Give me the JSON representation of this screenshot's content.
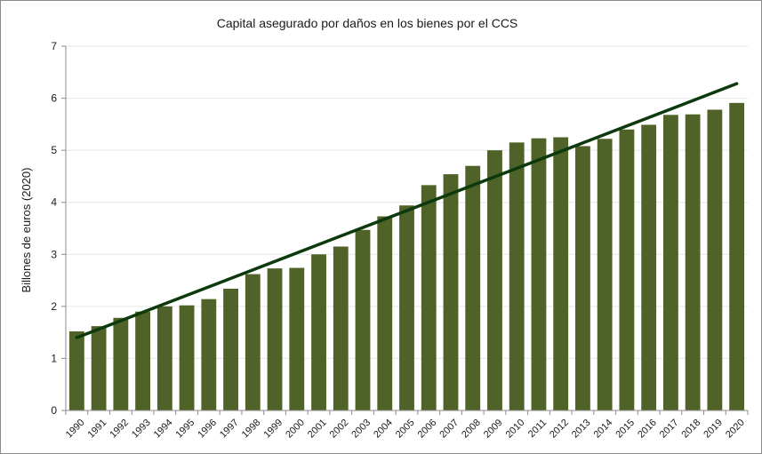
{
  "chart_data": {
    "type": "bar",
    "title": "Capital asegurado por daños en los bienes por el CCS",
    "xlabel": "",
    "ylabel": "Billones de euros (2020)",
    "ylim": [
      0,
      7
    ],
    "yticks": [
      0,
      1,
      2,
      3,
      4,
      5,
      6,
      7
    ],
    "grid": true,
    "legend": "none",
    "categories": [
      "1990",
      "1991",
      "1992",
      "1993",
      "1994",
      "1995",
      "1996",
      "1997",
      "1998",
      "1999",
      "2000",
      "2001",
      "2002",
      "2003",
      "2004",
      "2005",
      "2006",
      "2007",
      "2008",
      "2009",
      "2010",
      "2011",
      "2012",
      "2013",
      "2014",
      "2015",
      "2016",
      "2017",
      "2018",
      "2019",
      "2020"
    ],
    "values": [
      1.52,
      1.62,
      1.78,
      1.9,
      2.0,
      2.02,
      2.14,
      2.34,
      2.62,
      2.73,
      2.74,
      3.0,
      3.15,
      3.47,
      3.73,
      3.94,
      4.33,
      4.54,
      4.7,
      5.0,
      5.15,
      5.23,
      5.25,
      5.08,
      5.22,
      5.4,
      5.49,
      5.68,
      5.69,
      5.78,
      5.91
    ],
    "trendline": {
      "start_value": 1.4,
      "end_value": 6.28
    },
    "colors": {
      "bar": "#4f6228",
      "trend": "#0d3a0d",
      "grid": "#e6e6e6",
      "axis": "#8c8c8c"
    }
  }
}
